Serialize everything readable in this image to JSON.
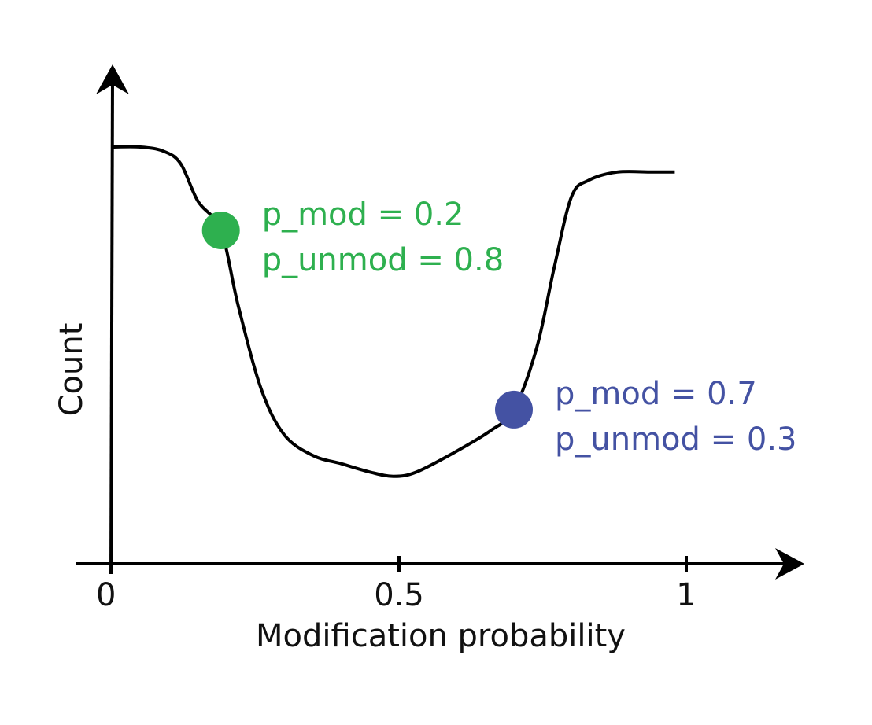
{
  "chart_data": {
    "type": "line",
    "title": "",
    "xlabel": "Modification probability",
    "ylabel": "Count",
    "xlim": [
      0,
      1
    ],
    "ylim": [
      0,
      1
    ],
    "x_ticks": [
      {
        "value": 0,
        "label": "0"
      },
      {
        "value": 0.5,
        "label": "0.5"
      },
      {
        "value": 1,
        "label": "1"
      }
    ],
    "grid": false,
    "legend": "none",
    "series": [
      {
        "color": "#000000",
        "points": [
          [
            0.0,
            1.0
          ],
          [
            0.05,
            1.0
          ],
          [
            0.09,
            0.99
          ],
          [
            0.12,
            0.96
          ],
          [
            0.15,
            0.87
          ],
          [
            0.19,
            0.8
          ],
          [
            0.22,
            0.62
          ],
          [
            0.26,
            0.42
          ],
          [
            0.3,
            0.31
          ],
          [
            0.35,
            0.26
          ],
          [
            0.4,
            0.24
          ],
          [
            0.45,
            0.22
          ],
          [
            0.49,
            0.21
          ],
          [
            0.53,
            0.22
          ],
          [
            0.6,
            0.27
          ],
          [
            0.66,
            0.32
          ],
          [
            0.7,
            0.37
          ],
          [
            0.74,
            0.52
          ],
          [
            0.77,
            0.71
          ],
          [
            0.8,
            0.88
          ],
          [
            0.83,
            0.92
          ],
          [
            0.88,
            0.94
          ],
          [
            0.94,
            0.94
          ],
          [
            0.98,
            0.94
          ]
        ]
      }
    ],
    "highlights": [
      {
        "x": 0.19,
        "y": 0.8,
        "color": "#2eb04f",
        "lines": [
          "p_mod = 0.2",
          "p_unmod = 0.8"
        ]
      },
      {
        "x": 0.7,
        "y": 0.37,
        "color": "#4452a3",
        "lines": [
          "p_mod = 0.7",
          "p_unmod = 0.3"
        ]
      }
    ]
  }
}
